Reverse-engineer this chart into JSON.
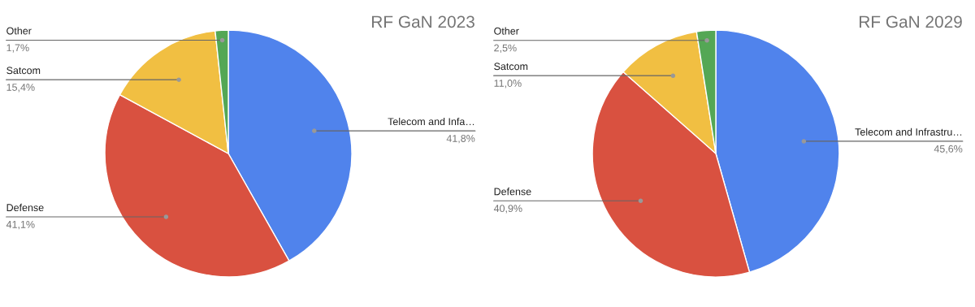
{
  "chart_data": [
    {
      "type": "pie",
      "title": "RF GaN 2023",
      "categories": [
        "Telecom and Infa…",
        "Defense",
        "Satcom",
        "Other"
      ],
      "values": [
        41.8,
        41.1,
        15.4,
        1.7
      ],
      "colors": [
        "#5083ec",
        "#d95140",
        "#f1bf42",
        "#54a755"
      ],
      "value_labels": [
        "41,8%",
        "41,1%",
        "15,4%",
        "1,7%"
      ]
    },
    {
      "type": "pie",
      "title": "RF GaN 2029",
      "categories": [
        "Telecom and Infrastru…",
        "Defense",
        "Satcom",
        "Other"
      ],
      "values": [
        45.6,
        40.9,
        11.0,
        2.5
      ],
      "colors": [
        "#5083ec",
        "#d95140",
        "#f1bf42",
        "#54a755"
      ],
      "value_labels": [
        "45,6%",
        "40,9%",
        "11,0%",
        "2,5%"
      ]
    }
  ]
}
